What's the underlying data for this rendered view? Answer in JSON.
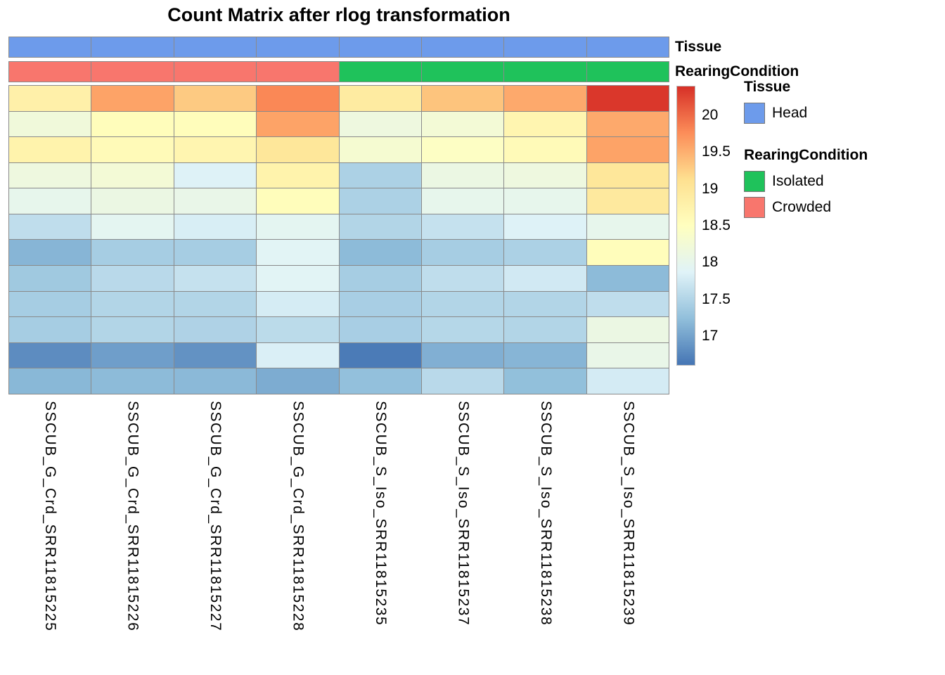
{
  "title": "Count Matrix after rlog transformation",
  "annotations": {
    "tissue_label": "Tissue",
    "rearing_label": "RearingCondition",
    "tissue_row": [
      "Head",
      "Head",
      "Head",
      "Head",
      "Head",
      "Head",
      "Head",
      "Head"
    ],
    "rearing_row": [
      "Crowded",
      "Crowded",
      "Crowded",
      "Crowded",
      "Isolated",
      "Isolated",
      "Isolated",
      "Isolated"
    ],
    "annotation_colors": {
      "Head": "#6D9BEB",
      "Crowded": "#F8766D",
      "Isolated": "#1FC25B"
    }
  },
  "color_scale": {
    "palette": [
      "#4575B4",
      "#91BFDB",
      "#E0F3F8",
      "#FFFFBF",
      "#FEE090",
      "#FC8D59",
      "#D73027"
    ],
    "domain_min": 16.6,
    "domain_max": 20.4,
    "ticks": [
      20,
      19.5,
      19,
      18.5,
      18,
      17.5,
      17
    ],
    "tick_labels": [
      "20",
      "19.5",
      "19",
      "18.5",
      "18",
      "17.5",
      "17"
    ]
  },
  "legend": {
    "tissue_title": "Tissue",
    "tissue_items": [
      {
        "label": "Head",
        "color": "#6D9BEB"
      }
    ],
    "rearing_title": "RearingCondition",
    "rearing_items": [
      {
        "label": "Isolated",
        "color": "#1FC25B"
      },
      {
        "label": "Crowded",
        "color": "#F8766D"
      }
    ]
  },
  "chart_data": {
    "type": "heatmap",
    "title": "Count Matrix after rlog transformation",
    "columns": [
      "SSCUB_G_Crd_SRR11815225",
      "SSCUB_G_Crd_SRR11815226",
      "SSCUB_G_Crd_SRR11815227",
      "SSCUB_G_Crd_SRR11815228",
      "SSCUB_S_Iso_SRR11815235",
      "SSCUB_S_Iso_SRR11815237",
      "SSCUB_S_Iso_SRR11815238",
      "SSCUB_S_Iso_SRR11815239"
    ],
    "col_annotations": {
      "Tissue": [
        "Head",
        "Head",
        "Head",
        "Head",
        "Head",
        "Head",
        "Head",
        "Head"
      ],
      "RearingCondition": [
        "Crowded",
        "Crowded",
        "Crowded",
        "Crowded",
        "Isolated",
        "Isolated",
        "Isolated",
        "Isolated"
      ]
    },
    "values": [
      [
        18.8,
        19.6,
        19.3,
        19.8,
        18.9,
        19.35,
        19.55,
        20.35
      ],
      [
        18.2,
        18.55,
        18.55,
        19.6,
        18.15,
        18.25,
        18.7,
        19.55
      ],
      [
        18.75,
        18.6,
        18.7,
        19.0,
        18.3,
        18.45,
        18.6,
        19.6
      ],
      [
        18.15,
        18.25,
        17.85,
        18.75,
        17.45,
        18.1,
        18.15,
        19.0
      ],
      [
        18.0,
        18.1,
        18.05,
        18.55,
        17.45,
        18.0,
        18.0,
        18.95
      ],
      [
        17.6,
        17.95,
        17.8,
        17.95,
        17.5,
        17.65,
        17.85,
        18.0
      ],
      [
        17.15,
        17.4,
        17.4,
        17.9,
        17.2,
        17.4,
        17.45,
        18.55
      ],
      [
        17.35,
        17.55,
        17.65,
        17.9,
        17.4,
        17.6,
        17.75,
        17.2
      ],
      [
        17.4,
        17.5,
        17.5,
        17.78,
        17.42,
        17.5,
        17.5,
        17.6
      ],
      [
        17.4,
        17.5,
        17.47,
        17.57,
        17.42,
        17.52,
        17.5,
        18.1
      ],
      [
        16.8,
        16.95,
        16.85,
        17.82,
        16.65,
        17.1,
        17.15,
        18.05
      ],
      [
        17.17,
        17.2,
        17.18,
        17.07,
        17.25,
        17.55,
        17.24,
        17.77
      ]
    ],
    "value_range": [
      16.6,
      20.4
    ],
    "colormap": "RdYlBu reversed",
    "legend_position": "right",
    "grid": true
  }
}
